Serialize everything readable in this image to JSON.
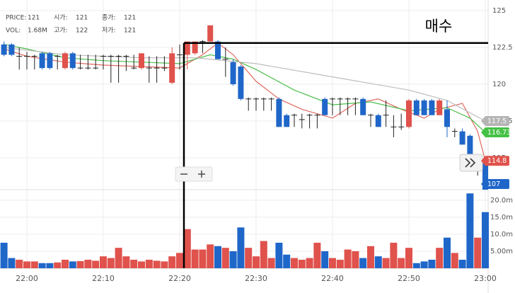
{
  "chart_data": {
    "type": "candlestick",
    "info": [
      {
        "label": "PRICE:",
        "value": 121
      },
      {
        "label": "시가:",
        "value": 121
      },
      {
        "label": "종가:",
        "value": 121
      },
      {
        "label": "VOL:",
        "value": "1.68M"
      },
      {
        "label": "고가:",
        "value": 122
      },
      {
        "label": "저가:",
        "value": 121
      }
    ],
    "times": [
      "21:57",
      "21:58",
      "21:59",
      "22:00",
      "22:01",
      "22:02",
      "22:03",
      "22:04",
      "22:05",
      "22:06",
      "22:07",
      "22:08",
      "22:09",
      "22:10",
      "22:11",
      "22:12",
      "22:13",
      "22:14",
      "22:15",
      "22:16",
      "22:17",
      "22:18",
      "22:19",
      "22:20",
      "22:21",
      "22:22",
      "22:23",
      "22:24",
      "22:25",
      "22:26",
      "22:27",
      "22:28",
      "22:29",
      "22:30",
      "22:31",
      "22:32",
      "22:33",
      "22:34",
      "22:35",
      "22:36",
      "22:37",
      "22:38",
      "22:39",
      "22:40",
      "22:41",
      "22:42",
      "22:43",
      "22:44",
      "22:45",
      "22:46",
      "22:47",
      "22:48",
      "22:49",
      "22:50",
      "22:51",
      "22:52",
      "22:53",
      "22:54",
      "22:55",
      "22:56",
      "22:57",
      "22:58",
      "22:59",
      "23:00"
    ],
    "open": [
      122.7,
      122.7,
      121.9,
      121.9,
      121.9,
      122.1,
      122.1,
      121.9,
      121.1,
      122.1,
      121.1,
      121.1,
      121.1,
      121.9,
      121.9,
      121.9,
      121.9,
      121.1,
      121.1,
      121.1,
      121.1,
      121.1,
      120.1,
      122.0,
      122.0,
      122.1,
      122.9,
      122.9,
      122.9,
      121.7,
      121.5,
      121.2,
      119.0,
      119.0,
      119.0,
      119.0,
      119.0,
      117.9,
      117.9,
      117.6,
      117.9,
      117.9,
      119.0,
      119.0,
      119.0,
      119.0,
      119.0,
      119.0,
      117.9,
      117.9,
      117.9,
      117.1,
      117.1,
      117.1,
      118.9,
      118.9,
      118.9,
      117.9,
      118.3,
      116.8,
      116.8,
      116.5,
      114.3,
      114.8
    ],
    "high": [
      122.9,
      122.8,
      122.5,
      122.2,
      122.0,
      122.2,
      122.2,
      122.0,
      122.2,
      122.2,
      122.0,
      122.0,
      122.0,
      122.0,
      122.0,
      122.0,
      122.0,
      122.0,
      122.1,
      121.9,
      121.9,
      121.9,
      122.5,
      122.7,
      122.9,
      122.9,
      123.0,
      124.0,
      123.0,
      122.5,
      121.7,
      121.3,
      119.1,
      119.1,
      119.1,
      119.1,
      119.1,
      118.0,
      118.0,
      118.0,
      118.0,
      118.0,
      119.1,
      119.1,
      119.1,
      119.1,
      119.1,
      119.1,
      118.0,
      118.0,
      118.9,
      117.9,
      118.0,
      119.0,
      119.0,
      119.0,
      119.0,
      119.0,
      118.9,
      117.0,
      117.0,
      116.6,
      114.5,
      114.8
    ],
    "low": [
      121.9,
      121.9,
      121.0,
      121.0,
      121.0,
      121.0,
      121.0,
      121.0,
      121.0,
      121.0,
      121.0,
      121.0,
      121.0,
      121.0,
      120.1,
      120.1,
      120.9,
      121.0,
      121.0,
      120.1,
      120.1,
      120.9,
      120.0,
      121.0,
      121.0,
      122.0,
      122.1,
      122.9,
      121.7,
      120.5,
      119.9,
      118.9,
      118.2,
      118.2,
      118.2,
      118.2,
      117.1,
      117.1,
      117.1,
      117.0,
      117.0,
      117.0,
      117.9,
      117.9,
      117.9,
      117.9,
      117.9,
      117.9,
      117.1,
      117.1,
      117.1,
      116.4,
      116.9,
      117.0,
      117.9,
      117.9,
      117.9,
      117.9,
      116.4,
      116.4,
      115.9,
      114.9,
      113.8,
      107.0
    ],
    "close": [
      122.0,
      122.0,
      121.9,
      121.9,
      121.9,
      121.1,
      121.1,
      121.9,
      122.1,
      121.1,
      121.1,
      121.1,
      121.1,
      121.9,
      121.9,
      121.9,
      121.9,
      121.1,
      122.1,
      121.1,
      121.1,
      121.1,
      122.1,
      122.0,
      122.9,
      122.9,
      122.9,
      124.0,
      121.7,
      121.7,
      120.0,
      119.0,
      119.0,
      119.0,
      119.0,
      119.0,
      117.1,
      117.1,
      117.9,
      117.6,
      117.9,
      117.9,
      117.9,
      119.0,
      119.0,
      119.0,
      119.0,
      117.9,
      117.9,
      117.1,
      117.9,
      117.1,
      117.1,
      118.9,
      117.9,
      117.9,
      117.9,
      118.9,
      117.1,
      116.8,
      115.9,
      115.0,
      114.3,
      107.0
    ],
    "up_color": "#e0524c",
    "down_color": "#1f66c9",
    "doji_color": "#222222",
    "ylim": [
      112.84,
      125.72
    ],
    "yticks": [
      125,
      122.5,
      120,
      117.5,
      115
    ],
    "grid": true,
    "xticks": [
      "22:00",
      "22:10",
      "22:20",
      "22:30",
      "22:40",
      "22:50",
      "23:00"
    ],
    "series": [
      {
        "color": "#e06a60",
        "x": [
          "21:57",
          "22:00",
          "22:05",
          "22:10",
          "22:15",
          "22:20",
          "22:23",
          "22:25",
          "22:27",
          "22:30",
          "22:33",
          "22:36",
          "22:40",
          "22:43",
          "22:46",
          "22:49",
          "22:52",
          "22:54",
          "22:57",
          "22:59",
          "23:00"
        ],
        "values": [
          122.4,
          121.9,
          121.5,
          121.3,
          121.2,
          121.1,
          122.0,
          122.8,
          122.0,
          120.2,
          119.0,
          118.3,
          117.7,
          118.7,
          119.0,
          118.3,
          117.7,
          118.3,
          118.7,
          116.8,
          114.8
        ]
      },
      {
        "color": "#4cbf4c",
        "x": [
          "21:57",
          "22:00",
          "22:05",
          "22:10",
          "22:15",
          "22:20",
          "22:24",
          "22:27",
          "22:30",
          "22:35",
          "22:40",
          "22:45",
          "22:50",
          "22:55",
          "22:58",
          "23:00"
        ],
        "values": [
          122.7,
          122.4,
          121.8,
          121.6,
          121.5,
          121.4,
          122.0,
          121.7,
          121.0,
          119.6,
          118.6,
          118.8,
          118.2,
          118.4,
          117.7,
          116.733
        ]
      },
      {
        "color": "#bdbdbd",
        "x": [
          "21:57",
          "22:05",
          "22:15",
          "22:22",
          "22:30",
          "22:40",
          "22:50",
          "22:55",
          "23:00"
        ],
        "values": [
          122.5,
          122.0,
          121.8,
          121.8,
          121.4,
          120.5,
          119.6,
          118.9,
          117.5
        ]
      }
    ],
    "price_tags": [
      {
        "value": 117.5,
        "color": "#b5b5b5"
      },
      {
        "value": 116.733,
        "color": "#45c145"
      },
      {
        "value": 114.8,
        "color": "#e0524c"
      },
      {
        "value": 107,
        "color": "#1f66c9"
      }
    ],
    "annotation": {
      "label": "매수",
      "value": 122.8
    },
    "volume": {
      "values": [
        7.5,
        3,
        2.5,
        2,
        2,
        1.5,
        1.5,
        1.7,
        2.5,
        2,
        2.1,
        2.5,
        2.2,
        3.5,
        3,
        6,
        3.5,
        2.5,
        2,
        2.5,
        2.2,
        2,
        3.5,
        4.5,
        11.5,
        5.5,
        5.5,
        7,
        6.5,
        6,
        5,
        12,
        6,
        3.5,
        8,
        3,
        7.5,
        4,
        3,
        2.5,
        3,
        7.5,
        5,
        3,
        2.5,
        5.5,
        5,
        3,
        6.5,
        3.5,
        3,
        7.5,
        3,
        6,
        1.5,
        2,
        2.5,
        6,
        9,
        4.5,
        2.5,
        22,
        9,
        16.5
      ],
      "ylim": [
        0,
        23.1
      ],
      "yticks": [
        {
          "value": 20,
          "label": "20.0m"
        },
        {
          "value": 15,
          "label": "15.0m"
        },
        {
          "value": 10,
          "label": "10.0m"
        },
        {
          "value": 5,
          "label": "5.00m"
        }
      ]
    }
  }
}
